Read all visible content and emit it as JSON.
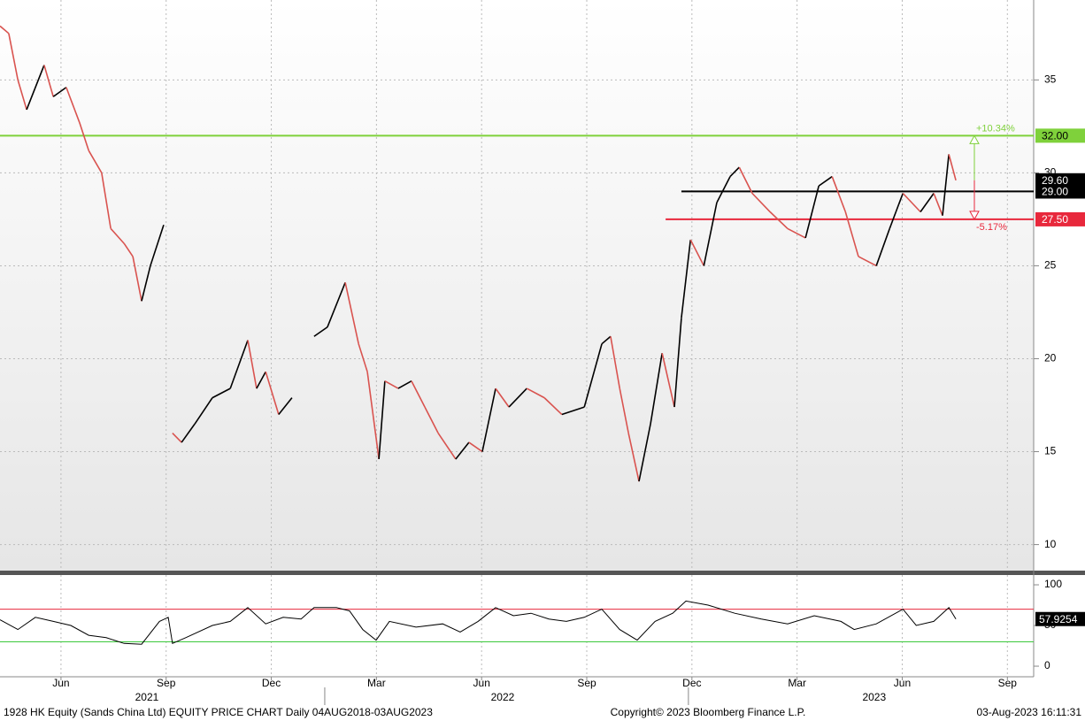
{
  "chart_data": [
    {
      "type": "line",
      "x": [
        3.26,
        3.51,
        3.77,
        4.02,
        4.52,
        4.78,
        5.15,
        5.53,
        5.79,
        6.16,
        6.42,
        6.8,
        7.05,
        7.3,
        7.55,
        7.93,
        8.06,
        8.18,
        8.44,
        8.82,
        9.32,
        9.83,
        10.33,
        10.58,
        10.84,
        11.21,
        11.59,
        12.1,
        12.22,
        12.6,
        13.11,
        13.49,
        13.74,
        14.07,
        14.24,
        14.62,
        15.0,
        15.38,
        15.76,
        16.26,
        16.64,
        17.02,
        17.4,
        17.78,
        18.29,
        18.79,
        19.29,
        19.93,
        20.43,
        20.68,
        20.94,
        21.19,
        21.49,
        21.82,
        22.15,
        22.5,
        22.7,
        22.96,
        23.34,
        23.71,
        24.09,
        24.35,
        24.72,
        25.23,
        25.73,
        26.24,
        26.62,
        27.0,
        27.38,
        27.75,
        28.26,
        28.64,
        29.02,
        29.52,
        29.9,
        30.15,
        30.33,
        30.53
      ],
      "values": [
        37.9,
        37.5,
        35,
        33.4,
        35.8,
        34.1,
        34.6,
        32.7,
        31.2,
        30,
        27,
        26.2,
        25.5,
        23.1,
        25,
        27.2,
        null,
        16,
        15.5,
        16.5,
        17.9,
        18.4,
        21,
        18.4,
        19.3,
        17,
        17.9,
        null,
        21.2,
        21.7,
        24.1,
        20.8,
        19.3,
        14.6,
        18.8,
        18.4,
        18.8,
        17.4,
        16,
        14.6,
        15.5,
        15,
        18.4,
        17.4,
        18.4,
        17.9,
        17,
        17.4,
        20.8,
        21.2,
        18.4,
        16,
        13.4,
        16.5,
        20.3,
        17.4,
        22.2,
        26.4,
        25,
        28.4,
        29.8,
        30.3,
        28.9,
        27.9,
        27,
        26.5,
        29.3,
        29.8,
        27.9,
        25.5,
        25,
        27,
        28.9,
        27.9,
        28.9,
        27.7,
        31,
        29.6
      ],
      "up_color": "#000000",
      "down_color": "#d9534f",
      "xlim": [
        3.26,
        32.75
      ],
      "xticks": [
        {
          "value": 5,
          "label": "Jun"
        },
        {
          "value": 8,
          "label": "Sep"
        },
        {
          "value": 11,
          "label": "Dec"
        },
        {
          "value": 14,
          "label": "Mar"
        },
        {
          "value": 17,
          "label": "Jun"
        },
        {
          "value": 20,
          "label": "Sep"
        },
        {
          "value": 23,
          "label": "Dec"
        },
        {
          "value": 26,
          "label": "Mar"
        },
        {
          "value": 29,
          "label": "Jun"
        },
        {
          "value": 32,
          "label": "Sep"
        }
      ],
      "year_labels": [
        {
          "value": 7.45,
          "label": "2021"
        },
        {
          "value": 17.6,
          "label": "2022"
        },
        {
          "value": 28.2,
          "label": "2023"
        }
      ],
      "ylim": [
        8.6,
        39.3
      ],
      "yticks": [
        10,
        15,
        20,
        25,
        30,
        35
      ],
      "grid": true,
      "levels": [
        {
          "value": 32,
          "label": "32.00",
          "color": "#7fd13b",
          "text_color": "#000000",
          "change": "+10.34%"
        },
        {
          "value": 29,
          "label": "29.00",
          "color": "#000000",
          "text_color": "#ffffff",
          "from": 22.7
        },
        {
          "value": 27.5,
          "label": "27.50",
          "color": "#e8283c",
          "text_color": "#ffffff",
          "from": 22.25,
          "change": "-5.17%"
        }
      ],
      "last_price": {
        "value": 29.6,
        "label": "29.60"
      }
    },
    {
      "type": "line",
      "x": [
        3.26,
        3.77,
        4.27,
        4.78,
        5.28,
        5.79,
        6.29,
        6.8,
        7.3,
        7.81,
        8.06,
        8.18,
        8.56,
        9.32,
        9.83,
        10.33,
        10.84,
        11.34,
        11.85,
        12.22,
        12.86,
        13.23,
        13.61,
        13.99,
        14.37,
        15.13,
        15.89,
        16.39,
        16.9,
        17.4,
        17.91,
        18.41,
        18.92,
        19.42,
        19.93,
        20.43,
        20.94,
        21.44,
        21.95,
        22.45,
        22.83,
        23.46,
        24.22,
        24.98,
        25.73,
        26.49,
        27.25,
        27.63,
        28.26,
        29.02,
        29.4,
        29.9,
        30.33,
        30.53
      ],
      "values": [
        57,
        45,
        60,
        55,
        50,
        38,
        35,
        28,
        27,
        55,
        60,
        28,
        35,
        50,
        55,
        72,
        52,
        60,
        58,
        72,
        72,
        68,
        45,
        32,
        55,
        48,
        52,
        42,
        55,
        72,
        62,
        65,
        58,
        55,
        60,
        70,
        45,
        32,
        55,
        65,
        80,
        75,
        65,
        58,
        52,
        62,
        55,
        45,
        52,
        70,
        50,
        55,
        72,
        57.9254
      ],
      "color": "#000000",
      "ylim": [
        -13,
        112
      ],
      "yticks": [
        0,
        50,
        100
      ],
      "levels": [
        {
          "value": 70,
          "color": "#e8283c"
        },
        {
          "value": 30,
          "color": "#3cc83c"
        }
      ]
    }
  ],
  "footer": {
    "left": "1928 HK Equity (Sands China Ltd) EQUITY PRICE CHART  Daily 04AUG2018-03AUG2023",
    "center": "Copyright© 2023 Bloomberg Finance L.P.",
    "right": "03-Aug-2023 16:11:31"
  }
}
